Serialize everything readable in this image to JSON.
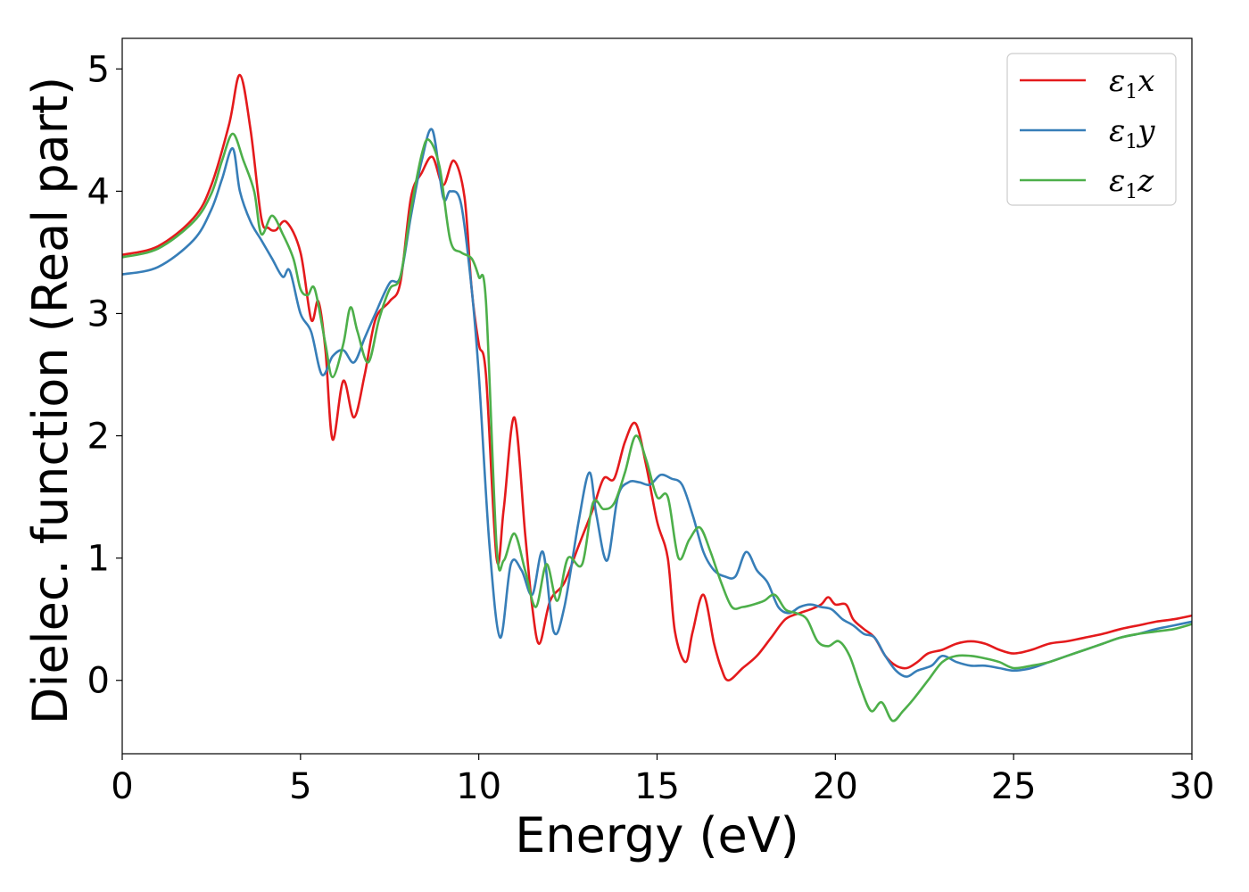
{
  "chart_data": {
    "type": "line",
    "xlabel": "Energy (eV)",
    "ylabel": "Dielec. function (Real part)",
    "xlim": [
      0,
      30
    ],
    "ylim": [
      -0.6,
      5.25
    ],
    "xticks": [
      0,
      5,
      10,
      15,
      20,
      25,
      30
    ],
    "yticks": [
      0,
      1,
      2,
      3,
      4,
      5
    ],
    "grid": false,
    "legend_position": "top-right",
    "series": [
      {
        "name": "ε1x",
        "legend_main": "ε",
        "legend_sub": "1",
        "legend_var": "x",
        "color": "#e41a1c",
        "x": [
          0,
          1,
          2,
          2.5,
          3,
          3.3,
          3.6,
          3.9,
          4.1,
          4.3,
          4.6,
          5.0,
          5.3,
          5.5,
          5.7,
          5.9,
          6.2,
          6.5,
          6.8,
          7.1,
          7.5,
          7.8,
          8.1,
          8.4,
          8.7,
          9.0,
          9.3,
          9.6,
          9.8,
          10.0,
          10.2,
          10.5,
          10.7,
          11.0,
          11.3,
          11.5,
          11.7,
          12.0,
          12.4,
          12.8,
          13.2,
          13.5,
          13.8,
          14.1,
          14.4,
          14.7,
          15.0,
          15.3,
          15.5,
          15.8,
          16.0,
          16.3,
          16.6,
          16.8,
          17.0,
          17.4,
          17.8,
          18.2,
          18.6,
          19.0,
          19.3,
          19.6,
          19.8,
          20.0,
          20.3,
          20.5,
          20.8,
          21.1,
          21.4,
          21.7,
          22.0,
          22.3,
          22.6,
          23.0,
          23.4,
          23.8,
          24.2,
          24.6,
          25.0,
          25.5,
          26.0,
          26.5,
          27.0,
          27.5,
          28.0,
          28.5,
          29.0,
          29.5,
          30.0
        ],
        "y": [
          3.48,
          3.55,
          3.78,
          4.05,
          4.55,
          4.95,
          4.5,
          3.78,
          3.7,
          3.68,
          3.75,
          3.5,
          2.95,
          3.1,
          2.7,
          1.97,
          2.45,
          2.15,
          2.5,
          2.95,
          3.1,
          3.25,
          3.95,
          4.15,
          4.28,
          4.05,
          4.25,
          3.95,
          3.2,
          2.75,
          2.5,
          1.0,
          1.4,
          2.15,
          1.2,
          0.6,
          0.3,
          0.65,
          0.8,
          1.1,
          1.4,
          1.65,
          1.65,
          1.95,
          2.1,
          1.75,
          1.3,
          1.0,
          0.4,
          0.15,
          0.4,
          0.7,
          0.3,
          0.1,
          0.0,
          0.1,
          0.2,
          0.35,
          0.5,
          0.55,
          0.58,
          0.62,
          0.68,
          0.62,
          0.62,
          0.5,
          0.42,
          0.35,
          0.2,
          0.12,
          0.1,
          0.15,
          0.22,
          0.25,
          0.3,
          0.32,
          0.3,
          0.25,
          0.22,
          0.25,
          0.3,
          0.32,
          0.35,
          0.38,
          0.42,
          0.45,
          0.48,
          0.5,
          0.53
        ]
      },
      {
        "name": "ε1y",
        "legend_main": "ε",
        "legend_sub": "1",
        "legend_var": "y",
        "color": "#377eb8",
        "x": [
          0,
          1,
          2,
          2.5,
          2.8,
          3.1,
          3.3,
          3.6,
          3.9,
          4.2,
          4.5,
          4.7,
          5.0,
          5.3,
          5.6,
          5.9,
          6.2,
          6.5,
          6.8,
          7.1,
          7.5,
          7.8,
          8.1,
          8.4,
          8.7,
          9.0,
          9.2,
          9.5,
          9.8,
          10.0,
          10.3,
          10.6,
          10.9,
          11.2,
          11.5,
          11.8,
          12.1,
          12.4,
          12.8,
          13.1,
          13.3,
          13.6,
          13.9,
          14.2,
          14.5,
          14.8,
          15.1,
          15.4,
          15.7,
          16.0,
          16.3,
          16.6,
          16.9,
          17.2,
          17.5,
          17.8,
          18.1,
          18.4,
          18.7,
          19.0,
          19.3,
          19.6,
          19.9,
          20.2,
          20.5,
          20.8,
          21.1,
          21.4,
          21.7,
          22.0,
          22.3,
          22.7,
          23.0,
          23.4,
          23.8,
          24.2,
          24.6,
          25.0,
          25.5,
          26.0,
          26.5,
          27.0,
          27.5,
          28.0,
          28.5,
          29.0,
          29.5,
          30.0
        ],
        "y": [
          3.32,
          3.38,
          3.6,
          3.85,
          4.1,
          4.35,
          4.0,
          3.75,
          3.6,
          3.45,
          3.3,
          3.35,
          3.0,
          2.85,
          2.5,
          2.65,
          2.7,
          2.6,
          2.8,
          3.0,
          3.25,
          3.3,
          3.8,
          4.25,
          4.5,
          3.95,
          4.0,
          3.9,
          3.2,
          2.5,
          1.1,
          0.35,
          0.95,
          0.9,
          0.7,
          1.05,
          0.4,
          0.6,
          1.3,
          1.7,
          1.35,
          0.98,
          1.5,
          1.62,
          1.62,
          1.6,
          1.68,
          1.65,
          1.6,
          1.35,
          1.05,
          0.9,
          0.85,
          0.85,
          1.05,
          0.9,
          0.8,
          0.6,
          0.55,
          0.6,
          0.62,
          0.6,
          0.58,
          0.5,
          0.45,
          0.38,
          0.35,
          0.2,
          0.08,
          0.03,
          0.08,
          0.12,
          0.2,
          0.15,
          0.12,
          0.12,
          0.1,
          0.08,
          0.1,
          0.15,
          0.2,
          0.25,
          0.3,
          0.35,
          0.38,
          0.42,
          0.45,
          0.48
        ]
      },
      {
        "name": "ε1z",
        "legend_main": "ε",
        "legend_sub": "1",
        "legend_var": "z",
        "color": "#4daf4a",
        "x": [
          0,
          1,
          2,
          2.5,
          2.8,
          3.1,
          3.4,
          3.7,
          3.9,
          4.2,
          4.5,
          4.8,
          5.0,
          5.2,
          5.4,
          5.7,
          5.9,
          6.2,
          6.4,
          6.6,
          6.9,
          7.2,
          7.5,
          7.8,
          8.1,
          8.4,
          8.6,
          8.9,
          9.2,
          9.5,
          9.8,
          10.0,
          10.2,
          10.5,
          10.7,
          11.0,
          11.3,
          11.6,
          11.9,
          12.2,
          12.5,
          12.9,
          13.2,
          13.5,
          13.8,
          14.1,
          14.4,
          14.7,
          15.0,
          15.3,
          15.6,
          15.9,
          16.2,
          16.5,
          16.8,
          17.1,
          17.4,
          17.7,
          18.0,
          18.3,
          18.6,
          18.9,
          19.2,
          19.5,
          19.8,
          20.1,
          20.4,
          20.7,
          21.0,
          21.3,
          21.6,
          21.9,
          22.2,
          22.6,
          23.0,
          23.4,
          23.8,
          24.2,
          24.6,
          25.0,
          25.5,
          26.0,
          26.5,
          27.0,
          27.5,
          28.0,
          28.5,
          29.0,
          29.5,
          30.0
        ],
        "y": [
          3.46,
          3.53,
          3.75,
          3.98,
          4.25,
          4.47,
          4.25,
          4.0,
          3.65,
          3.8,
          3.65,
          3.45,
          3.2,
          3.15,
          3.2,
          2.75,
          2.48,
          2.75,
          3.05,
          2.85,
          2.6,
          2.95,
          3.2,
          3.3,
          3.85,
          4.3,
          4.42,
          4.2,
          3.6,
          3.5,
          3.45,
          3.3,
          3.1,
          1.1,
          0.98,
          1.2,
          0.9,
          0.6,
          0.95,
          0.65,
          1.0,
          0.95,
          1.45,
          1.4,
          1.45,
          1.7,
          2.0,
          1.8,
          1.5,
          1.5,
          1.0,
          1.15,
          1.25,
          1.05,
          0.8,
          0.6,
          0.6,
          0.62,
          0.65,
          0.7,
          0.58,
          0.55,
          0.5,
          0.32,
          0.28,
          0.32,
          0.2,
          -0.05,
          -0.25,
          -0.18,
          -0.33,
          -0.25,
          -0.15,
          0.0,
          0.15,
          0.2,
          0.2,
          0.18,
          0.15,
          0.1,
          0.12,
          0.15,
          0.2,
          0.25,
          0.3,
          0.35,
          0.38,
          0.4,
          0.42,
          0.46
        ]
      }
    ]
  }
}
